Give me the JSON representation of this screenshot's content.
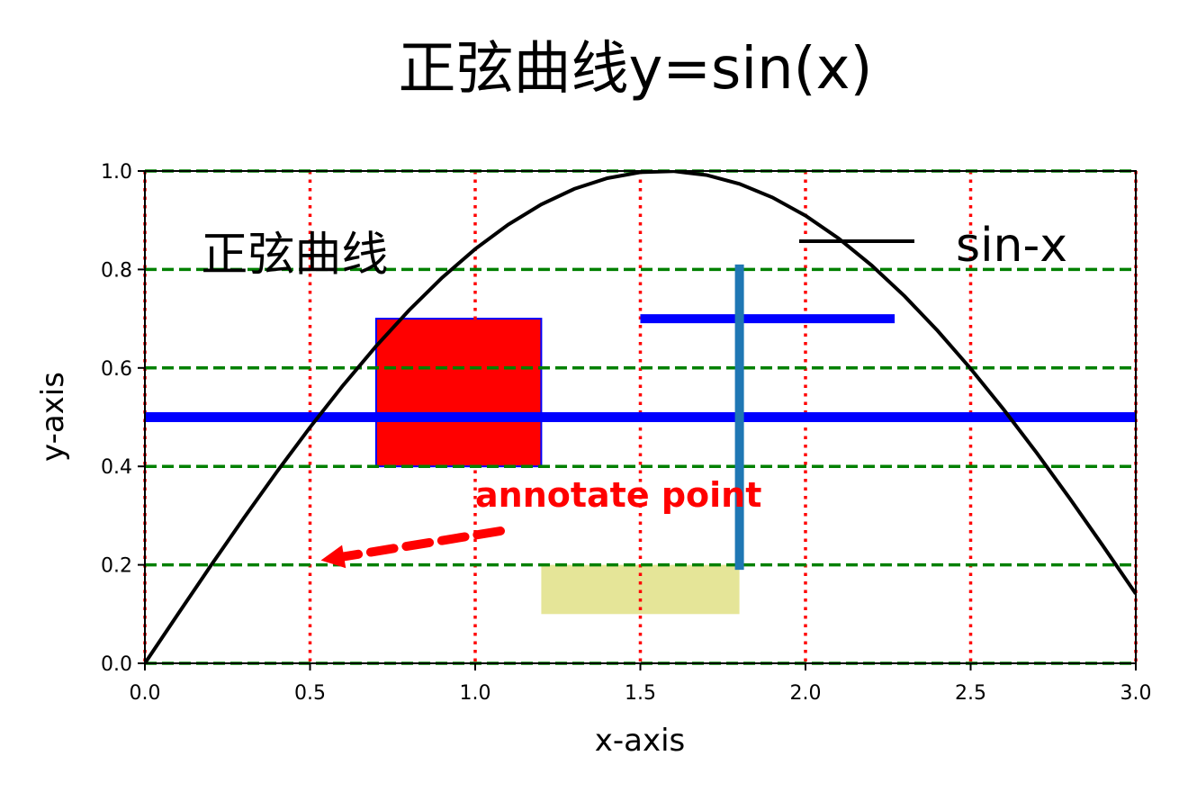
{
  "chart_data": {
    "type": "line",
    "title": "正弦曲线y=sin(x)",
    "xlabel": "x-axis",
    "ylabel": "y-axis",
    "xlim": [
      0,
      3
    ],
    "ylim": [
      0,
      1
    ],
    "xticks": [
      0,
      0.5,
      1,
      1.5,
      2,
      2.5,
      3
    ],
    "xtick_labels": [
      "0.0",
      "0.5",
      "1.0",
      "1.5",
      "2.0",
      "2.5",
      "3.0"
    ],
    "yticks": [
      0,
      0.2,
      0.4,
      0.6,
      0.8,
      1
    ],
    "ytick_labels": [
      "0.0",
      "0.2",
      "0.4",
      "0.6",
      "0.8",
      "1.0"
    ],
    "grid": {
      "x": {
        "style": "dotted",
        "color": "#ff0000"
      },
      "y": {
        "style": "dashed",
        "color": "#008000"
      }
    },
    "legend": {
      "placement": "upper-right",
      "entries": [
        {
          "label": "sin-x",
          "color": "#000000"
        }
      ]
    },
    "series": [
      {
        "name": "sin-x",
        "color": "#000000",
        "x": [
          0,
          0.1,
          0.2,
          0.3,
          0.4,
          0.5,
          0.6,
          0.7,
          0.8,
          0.9,
          1.0,
          1.1,
          1.2,
          1.3,
          1.4,
          1.5,
          1.6,
          1.7,
          1.8,
          1.9,
          2.0,
          2.1,
          2.2,
          2.3,
          2.4,
          2.5,
          2.6,
          2.7,
          2.8,
          2.9,
          3.0
        ],
        "y": [
          0,
          0.0998,
          0.1987,
          0.2955,
          0.3894,
          0.4794,
          0.5646,
          0.6442,
          0.7174,
          0.7833,
          0.8415,
          0.8912,
          0.932,
          0.9636,
          0.9854,
          0.9975,
          0.9996,
          0.9917,
          0.9738,
          0.9463,
          0.9093,
          0.8632,
          0.8085,
          0.7457,
          0.6755,
          0.5985,
          0.5155,
          0.4274,
          0.335,
          0.2392,
          0.1411
        ]
      }
    ],
    "reference_lines": [
      {
        "orientation": "horizontal",
        "y": 0.5,
        "x_from": 0,
        "x_to": 3,
        "color": "#0000ff"
      },
      {
        "orientation": "horizontal",
        "y": 0.7,
        "x_from": 1.5,
        "x_to": 2.27,
        "color": "#0000ff"
      },
      {
        "orientation": "vertical",
        "x": 1.8,
        "y_from": 0.19,
        "y_to": 0.81,
        "color": "#1f77b4"
      }
    ],
    "shapes": [
      {
        "kind": "rectangle",
        "x": 0.7,
        "y": 0.4,
        "width": 0.5,
        "height": 0.3,
        "fill": "#ff0000",
        "edge": "#0000ff"
      },
      {
        "kind": "span",
        "x": 1.2,
        "y": 0.1,
        "width": 0.6,
        "height": 0.1,
        "fill": "#e5e598"
      }
    ],
    "text_annotations": [
      {
        "text": "正弦曲线",
        "x": 0.17,
        "y": 0.8
      }
    ],
    "arrow_annotation": {
      "text": "annotate point",
      "color": "#ff0000",
      "point": [
        0.5,
        0.2
      ],
      "text_position": [
        1.0,
        0.3
      ]
    }
  }
}
